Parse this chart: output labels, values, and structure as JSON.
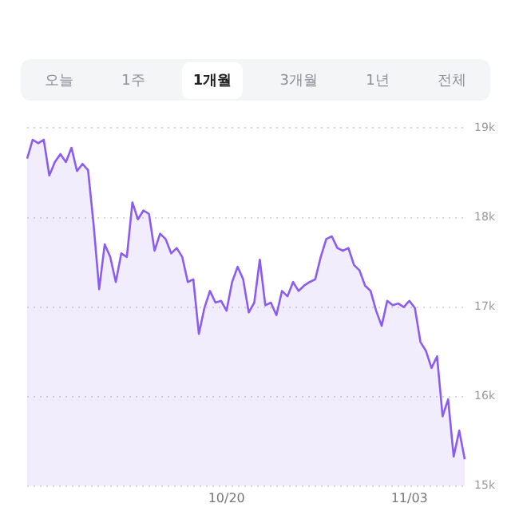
{
  "chart_data": {
    "type": "area",
    "annotations": [
      "오늘",
      "1주",
      "1개월",
      "3개월",
      "1년",
      "전체"
    ],
    "categories": [
      null,
      null,
      null,
      null,
      null,
      null,
      null,
      null,
      null,
      null,
      null,
      null,
      null,
      null,
      null,
      null,
      null,
      null,
      null,
      null,
      null,
      null,
      null,
      null,
      null,
      null,
      null,
      null,
      null,
      null,
      null,
      null,
      null,
      null,
      null,
      null,
      "10/20",
      null,
      null,
      null,
      null,
      null,
      null,
      null,
      null,
      null,
      null,
      null,
      null,
      null,
      null,
      null,
      null,
      null,
      null,
      null,
      null,
      null,
      null,
      null,
      null,
      null,
      null,
      null,
      null,
      null,
      null,
      null,
      null,
      "11/03",
      null,
      null,
      null,
      null,
      null,
      null,
      null,
      null,
      null,
      null
    ],
    "series": [
      {
        "color": "#8b5cf0",
        "values": [
          18.66,
          18.87,
          18.83,
          18.87,
          18.47,
          18.62,
          18.71,
          18.62,
          18.78,
          18.52,
          18.6,
          18.53,
          17.92,
          17.2,
          17.7,
          17.56,
          17.28,
          17.6,
          17.56,
          18.17,
          17.98,
          18.08,
          18.04,
          17.63,
          17.82,
          17.76,
          17.6,
          17.66,
          17.56,
          17.28,
          17.31,
          16.7,
          16.99,
          17.18,
          17.05,
          17.07,
          16.96,
          17.28,
          17.45,
          17.31,
          16.94,
          17.05,
          17.53,
          17.02,
          17.05,
          16.91,
          17.18,
          17.12,
          17.28,
          17.18,
          17.24,
          17.28,
          17.31,
          17.56,
          17.76,
          17.79,
          17.66,
          17.63,
          17.66,
          17.47,
          17.41,
          17.24,
          17.18,
          16.96,
          16.79,
          17.07,
          17.02,
          17.04,
          17.0,
          17.07,
          16.99,
          16.61,
          16.51,
          16.32,
          16.45,
          15.78,
          15.97,
          15.33,
          15.62,
          15.3
        ]
      }
    ],
    "ylim": [
      15,
      19
    ],
    "yticks": [
      {
        "value": 15,
        "label": "15k"
      },
      {
        "value": 16,
        "label": "16k"
      },
      {
        "value": 17,
        "label": "17k"
      },
      {
        "value": 18,
        "label": "18k"
      },
      {
        "value": 19,
        "label": "19k"
      }
    ],
    "grid": "y",
    "legend": false
  }
}
